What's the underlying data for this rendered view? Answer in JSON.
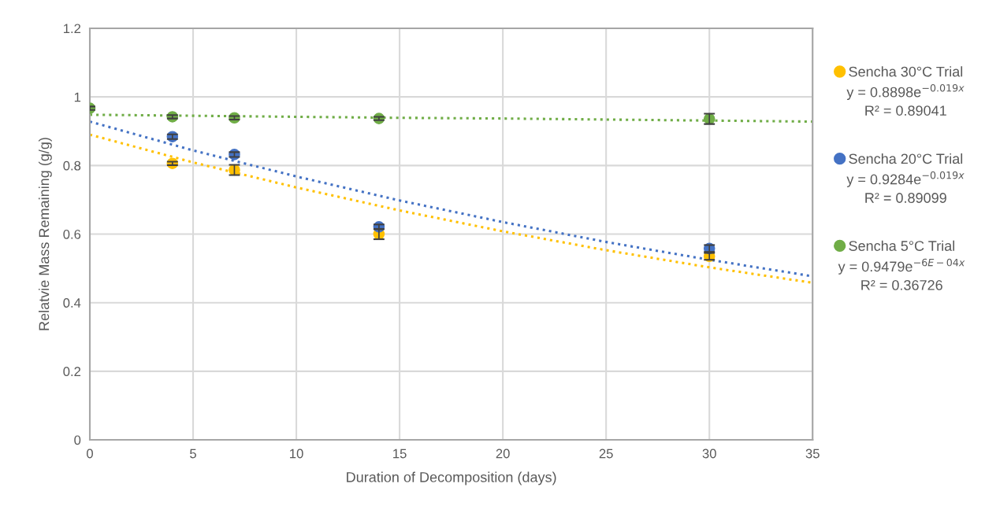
{
  "chart_data": {
    "type": "scatter",
    "xlabel": "Duration of Decomposition (days)",
    "ylabel": "Relatvie Mass Remaining (g/g)",
    "x": [
      0,
      4,
      7,
      14,
      30
    ],
    "xlim": [
      0,
      35
    ],
    "xticks": [
      0,
      5,
      10,
      15,
      20,
      25,
      30,
      35
    ],
    "ylim": [
      0,
      1.2
    ],
    "yticks": [
      0,
      0.2,
      0.4,
      0.6,
      0.8,
      1,
      1.2
    ],
    "grid": true,
    "legend": "right",
    "marker": "circle",
    "series": [
      {
        "name": "Sencha 30°C Trial",
        "color": "#ffc000",
        "values": [
          null,
          0.806,
          0.787,
          0.6,
          0.535
        ],
        "errors": [
          null,
          0.005,
          0.015,
          0.015,
          0.01
        ]
      },
      {
        "name": "Sencha 20°C Trial",
        "color": "#4472c4",
        "values": [
          null,
          0.884,
          0.832,
          0.621,
          0.558
        ],
        "errors": [
          null,
          0.007,
          0.007,
          0.007,
          0.01
        ]
      },
      {
        "name": "Sencha 5°C Trial",
        "color": "#70ad47",
        "values": [
          0.967,
          0.942,
          0.939,
          0.937,
          0.936
        ],
        "errors": [
          0.005,
          0.005,
          0.005,
          0.005,
          0.015
        ]
      },
      {
        "type": "line",
        "color": "#ffc000",
        "line_style": "dotted",
        "marker": "none",
        "x": [
          0,
          5,
          10,
          15,
          20,
          25,
          30,
          35
        ],
        "values": [
          0.89,
          0.809,
          0.736,
          0.669,
          0.608,
          0.553,
          0.503,
          0.458
        ]
      },
      {
        "type": "line",
        "color": "#4472c4",
        "line_style": "dotted",
        "marker": "none",
        "x": [
          0,
          5,
          10,
          15,
          20,
          25,
          30,
          35
        ],
        "values": [
          0.928,
          0.844,
          0.768,
          0.698,
          0.635,
          0.577,
          0.525,
          0.477
        ]
      },
      {
        "type": "line",
        "color": "#70ad47",
        "line_style": "dotted",
        "marker": "none",
        "x": [
          0,
          5,
          10,
          15,
          20,
          25,
          30,
          35
        ],
        "values": [
          0.948,
          0.945,
          0.942,
          0.939,
          0.937,
          0.934,
          0.931,
          0.928
        ]
      }
    ],
    "annotations": [
      "y = 0.8898e$^{−0.019x}$\nR² = 0.89041",
      "y = 0.9284e$^{−0.019x}$\nR² = 0.89099",
      "y = 0.9479e$^{−6E−04x}$\nR² = 0.36726"
    ]
  }
}
